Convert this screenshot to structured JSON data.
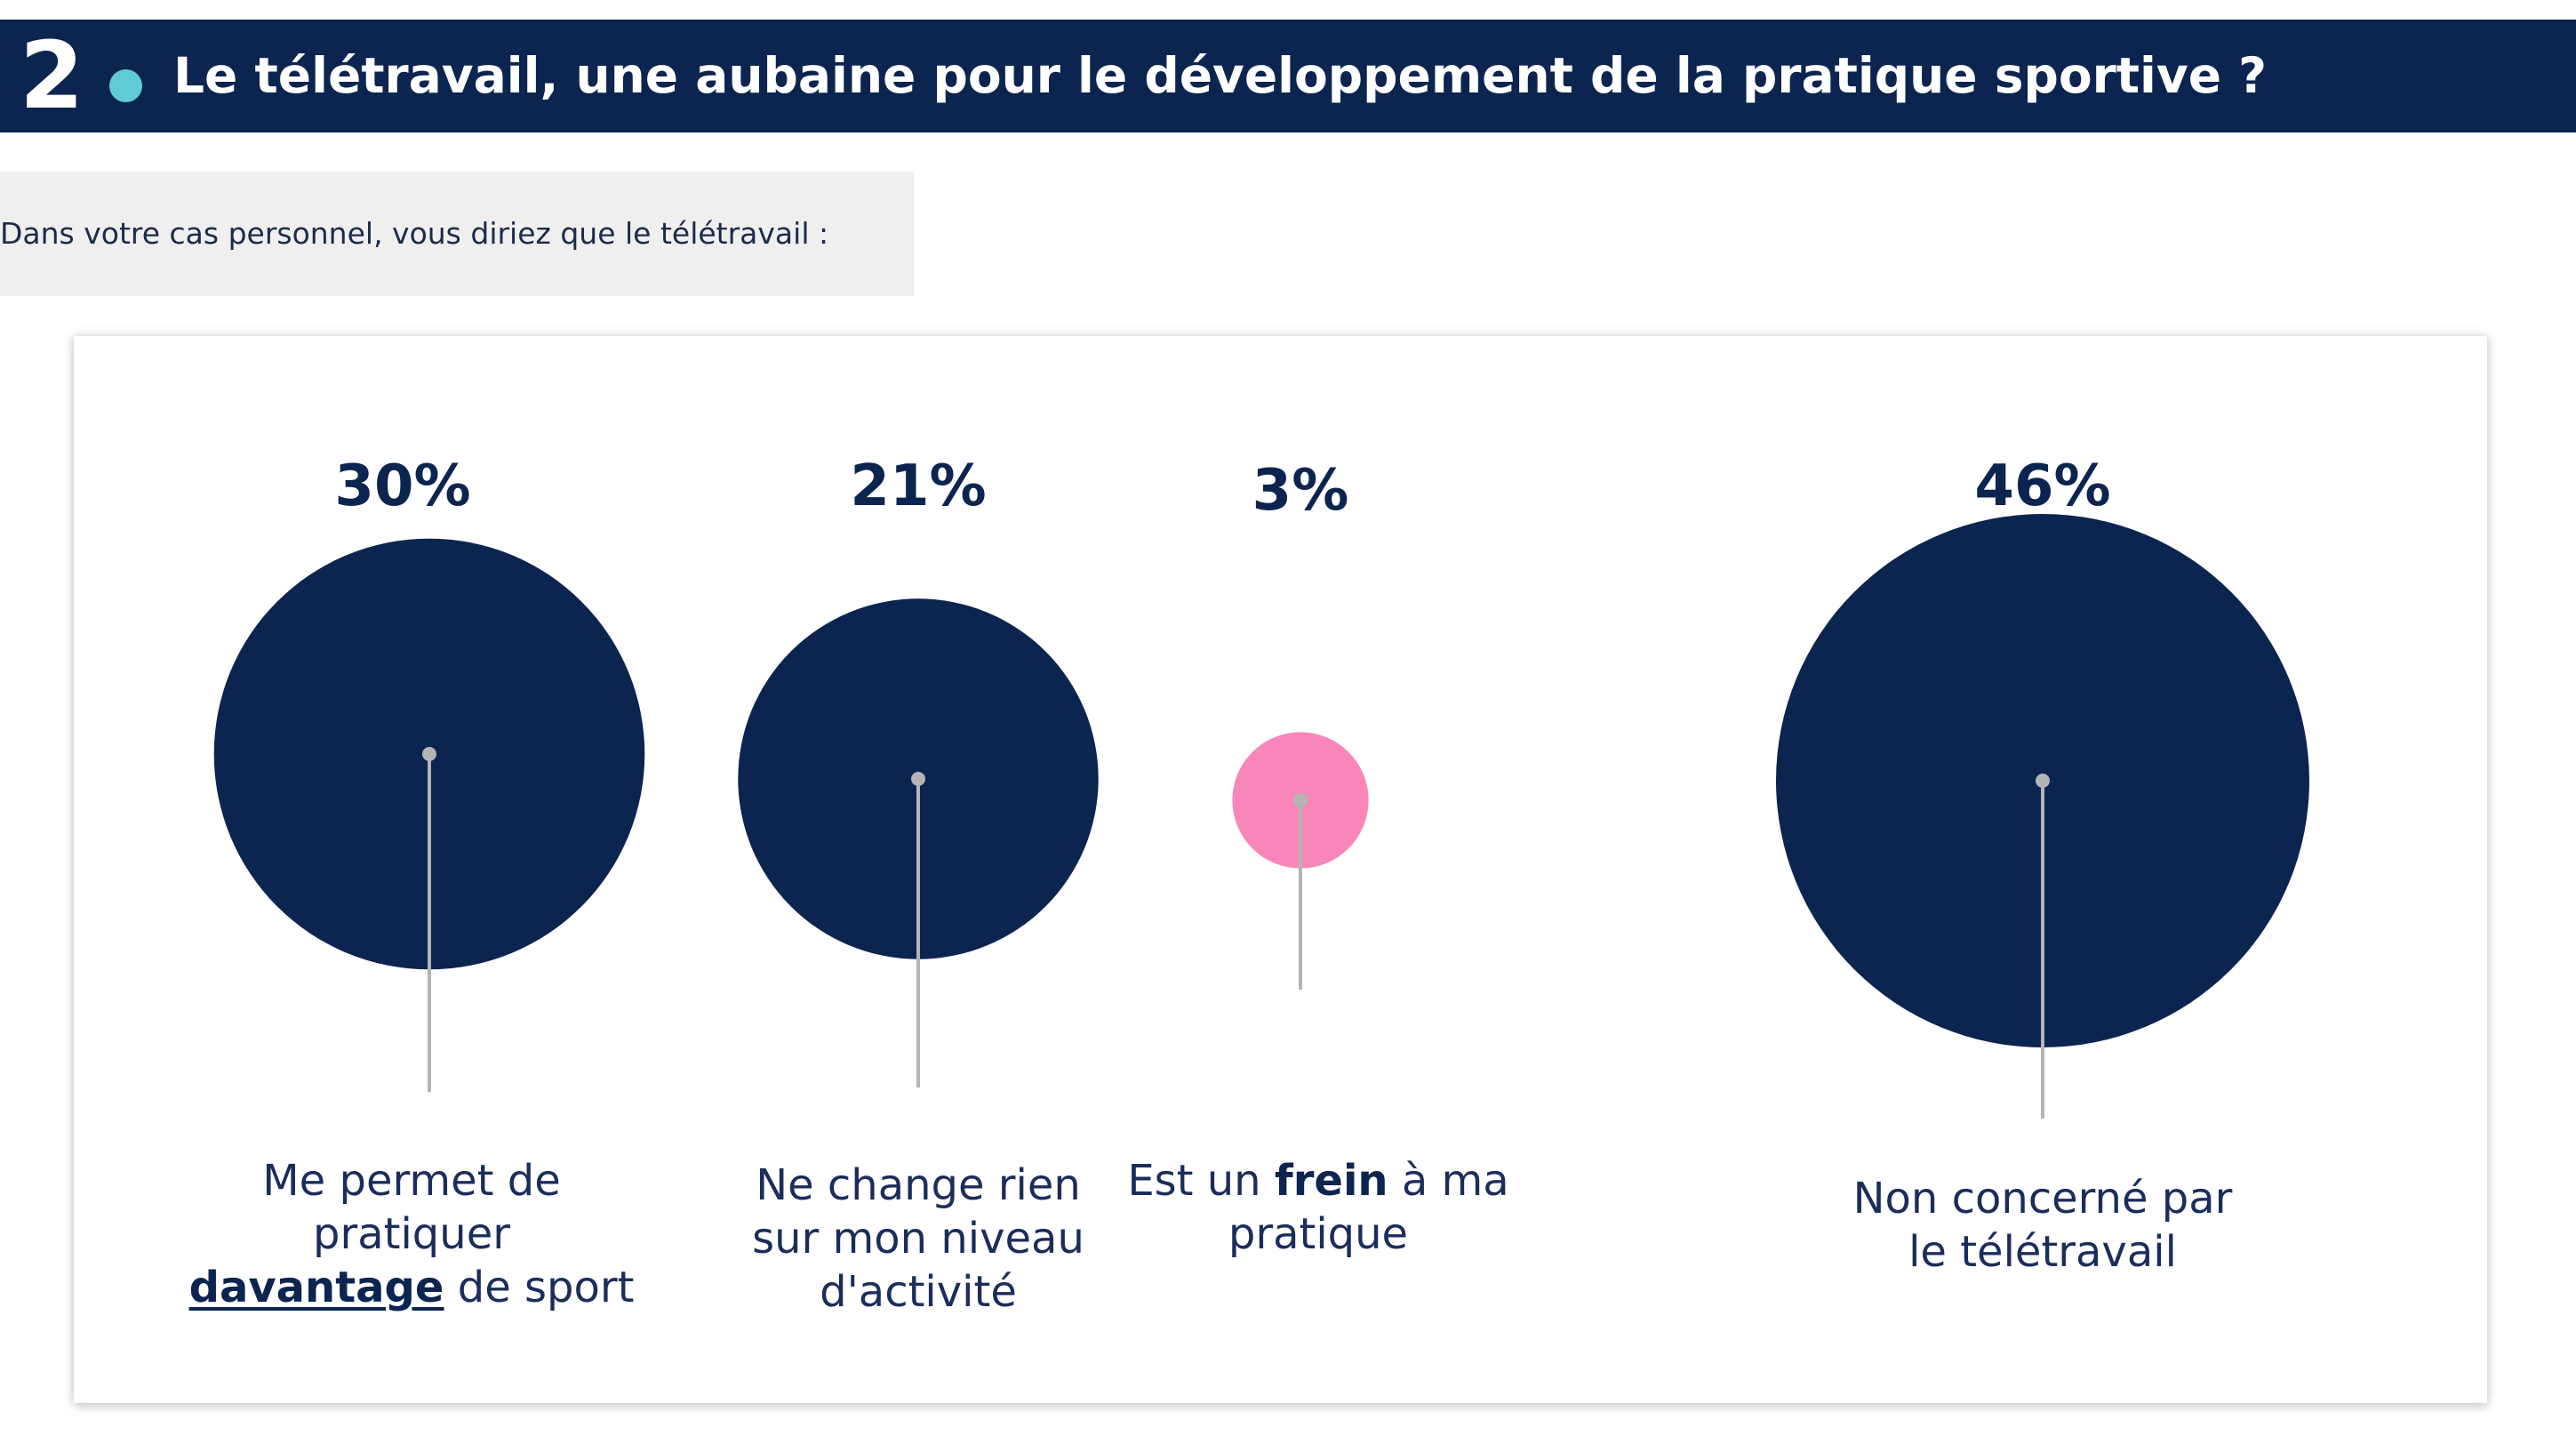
{
  "header": {
    "number": "2",
    "title": "Le télétravail, une aubaine pour le développement de la pratique sportive ?"
  },
  "question": {
    "text": "Dans votre cas personnel, vous diriez que le télétravail :"
  },
  "colors": {
    "navy": "#0c2450",
    "pink": "#f986b8",
    "accent_dot": "#5fcbd5",
    "stem": "#b4b4b4"
  },
  "chart_data": {
    "type": "bubble",
    "title": "",
    "categories": [
      "Me permet de pratiquer davantage de sport",
      "Ne change rien sur mon niveau d'activité",
      "Est un frein à ma pratique",
      "Non concerné par le télétravail"
    ],
    "values": [
      30,
      21,
      3,
      46
    ],
    "value_labels": [
      "30%",
      "21%",
      "3%",
      "46%"
    ],
    "unit": "%",
    "highlight_color_by_category": [
      "#0c2450",
      "#0c2450",
      "#f986b8",
      "#0c2450"
    ],
    "label_parts": [
      [
        {
          "t": "Me permet de",
          "s": ""
        },
        {
          "br": true
        },
        {
          "t": "pratiquer",
          "s": ""
        },
        {
          "br": true
        },
        {
          "t": "davantage",
          "s": "ul"
        },
        {
          "t": " de sport",
          "s": ""
        }
      ],
      [
        {
          "t": "Ne change rien",
          "s": ""
        },
        {
          "br": true
        },
        {
          "t": "sur mon niveau",
          "s": ""
        },
        {
          "br": true
        },
        {
          "t": "d'activité",
          "s": ""
        }
      ],
      [
        {
          "t": "Est un ",
          "s": ""
        },
        {
          "t": "frein",
          "s": "em"
        },
        {
          "t": " à ma",
          "s": ""
        },
        {
          "br": true
        },
        {
          "t": "pratique",
          "s": ""
        }
      ],
      [
        {
          "t": "Non concerné par",
          "s": ""
        },
        {
          "br": true
        },
        {
          "t": "le télétravail",
          "s": ""
        }
      ]
    ]
  }
}
